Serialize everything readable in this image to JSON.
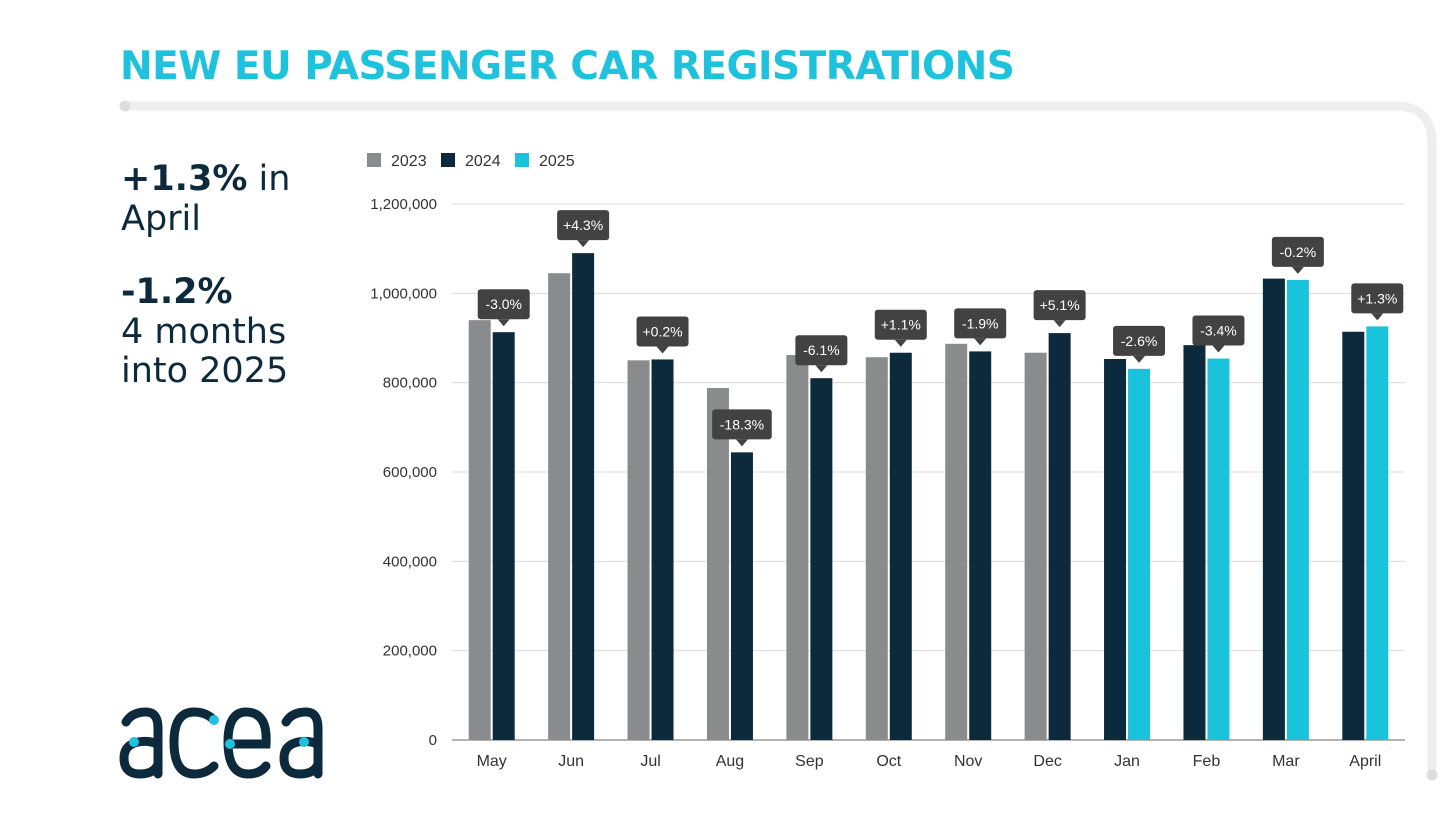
{
  "title": "NEW EU PASSENGER CAR REGISTRATIONS",
  "summary": {
    "april_value": "+1.3%",
    "april_suffix": "in",
    "april_label": "April",
    "ytd_value": "-1.2%",
    "ytd_line1": "4 months",
    "ytd_line2": "into 2025"
  },
  "logo_text": "acea",
  "colors": {
    "title": "#1ec2dc",
    "dark": "#0d2a3c",
    "2023": "#898b8c",
    "2024": "#0d2a3c",
    "2025": "#19c3dc",
    "callout": "#424242"
  },
  "chart_data": {
    "type": "bar",
    "categories": [
      "May",
      "Jun",
      "Jul",
      "Aug",
      "Sep",
      "Oct",
      "Nov",
      "Dec",
      "Jan",
      "Feb",
      "Mar",
      "April"
    ],
    "series": [
      {
        "name": "2023",
        "values": [
          940000,
          1045000,
          850000,
          788000,
          862000,
          857000,
          887000,
          867000,
          null,
          null,
          null,
          null
        ]
      },
      {
        "name": "2024",
        "values": [
          913000,
          1090000,
          852000,
          644000,
          810000,
          867000,
          870000,
          911000,
          853000,
          884000,
          1033000,
          914000
        ]
      },
      {
        "name": "2025",
        "values": [
          null,
          null,
          null,
          null,
          null,
          null,
          null,
          null,
          831000,
          854000,
          1030000,
          926000
        ]
      }
    ],
    "change_labels": [
      "-3.0%",
      "+4.3%",
      "+0.2%",
      "-18.3%",
      "-6.1%",
      "+1.1%",
      "-1.9%",
      "+5.1%",
      "-2.6%",
      "-3.4%",
      "-0.2%",
      "+1.3%"
    ],
    "ylim": [
      0,
      1200000
    ],
    "yticks": [
      0,
      200000,
      400000,
      600000,
      800000,
      1000000,
      1200000
    ],
    "ytick_labels": [
      "0",
      "200,000",
      "400,000",
      "600,000",
      "800,000",
      "1,000,000",
      "1,200,000"
    ],
    "grid": true,
    "legend_position": "top-left",
    "title": "",
    "xlabel": "",
    "ylabel": ""
  }
}
